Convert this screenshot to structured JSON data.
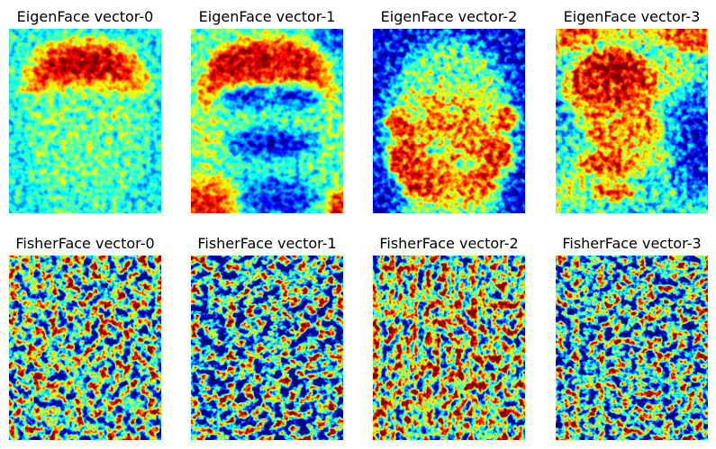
{
  "colormap": [
    "#00007f",
    "#0000ff",
    "#007fff",
    "#00ffff",
    "#7fff7f",
    "#ffff00",
    "#ff7f00",
    "#ff0000",
    "#7f0000"
  ],
  "rows": [
    {
      "panels": [
        {
          "title": "EigenFace vector-0"
        },
        {
          "title": "EigenFace vector-1"
        },
        {
          "title": "EigenFace vector-2"
        },
        {
          "title": "EigenFace vector-3"
        }
      ]
    },
    {
      "panels": [
        {
          "title": "FisherFace vector-0"
        },
        {
          "title": "FisherFace vector-1"
        },
        {
          "title": "FisherFace vector-2"
        },
        {
          "title": "FisherFace vector-3"
        }
      ]
    }
  ]
}
